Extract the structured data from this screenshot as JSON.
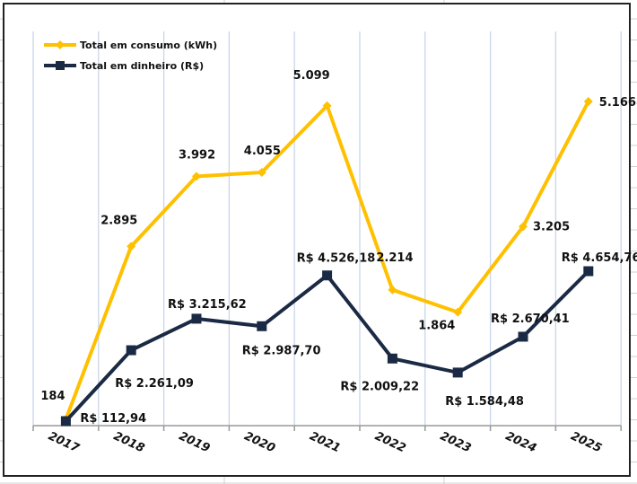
{
  "chart_data": {
    "type": "line",
    "categories": [
      "2017",
      "2018",
      "2019",
      "2020",
      "2021",
      "2022",
      "2023",
      "2024",
      "2025"
    ],
    "series": [
      {
        "name": "Total em consumo (kWh)",
        "color": "#FFC000",
        "marker": "diamond",
        "values": [
          184,
          2895,
          3992,
          4055,
          5099,
          2214,
          1864,
          3205,
          5166
        ],
        "labels": [
          "184",
          "2.895",
          "3.992",
          "4.055",
          "5.099",
          "2.214",
          "1.864",
          "3.205",
          "5.166"
        ]
      },
      {
        "name": "Total em dinheiro (R$)",
        "color": "#1B2A44",
        "marker": "square",
        "values": [
          112.94,
          2261.09,
          3215.62,
          2987.7,
          4526.18,
          2009.22,
          1584.48,
          2670.41,
          4654.76
        ],
        "labels": [
          "R$ 112,94",
          "R$ 2.261,09",
          "R$ 3.215,62",
          "R$ 2.987,70",
          "R$ 4.526,18",
          "R$ 2.009,22",
          "R$ 1.584,48",
          "R$ 2.670,41",
          "R$ 4.654,76"
        ]
      }
    ],
    "title": "",
    "xlabel": "",
    "ylabel": "",
    "legend_position": "top-left",
    "grid": "vertical"
  }
}
